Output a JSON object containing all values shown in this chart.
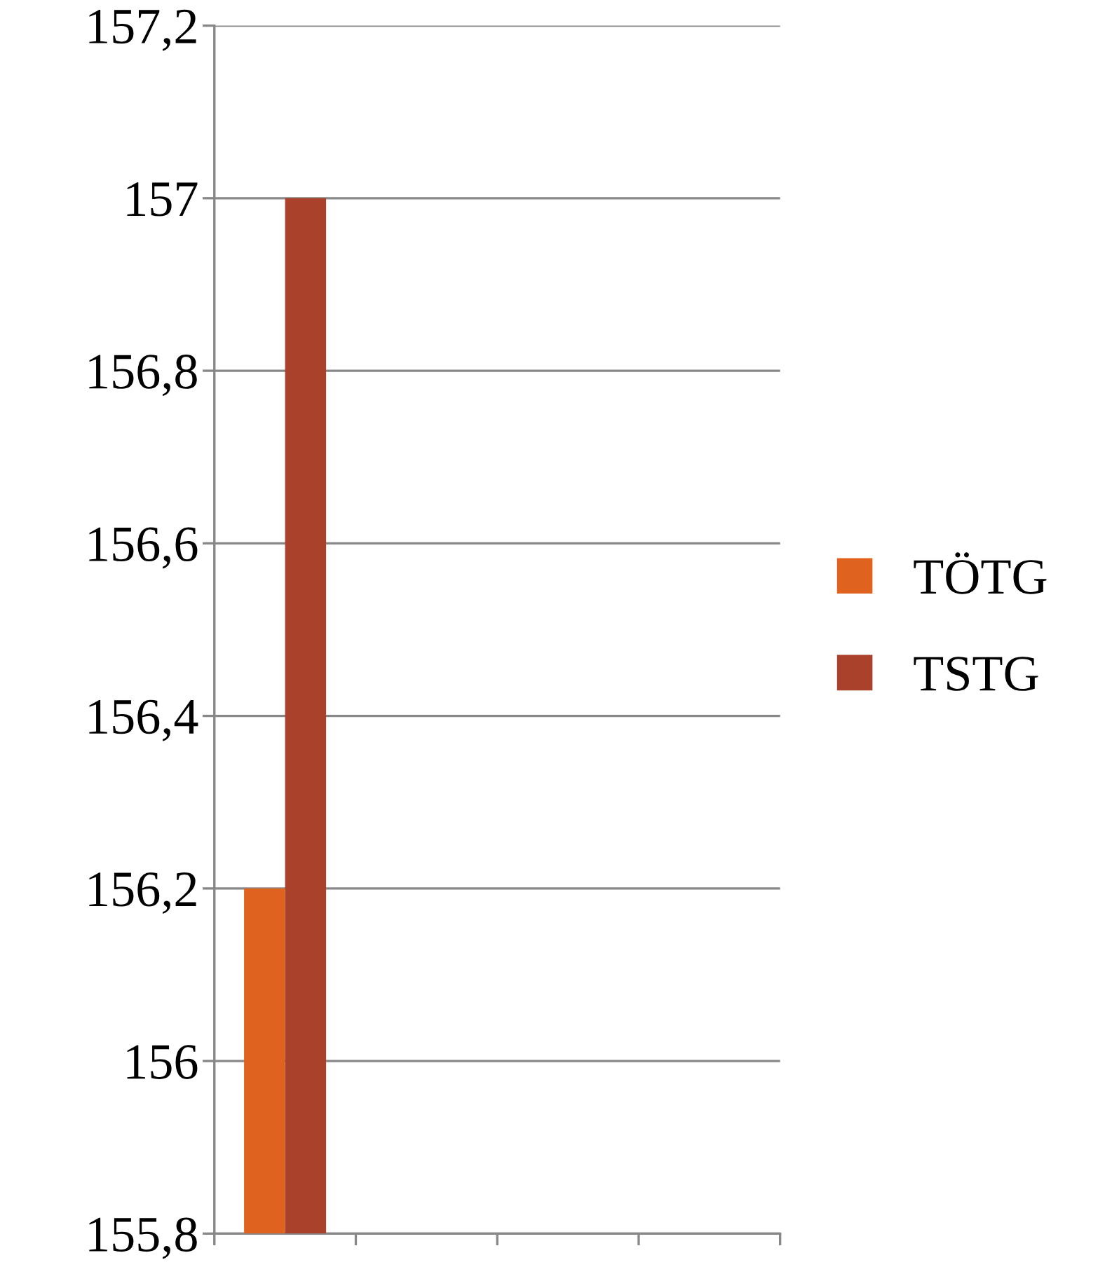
{
  "chart_data": {
    "type": "bar",
    "categories": [
      null,
      null,
      null,
      null
    ],
    "series": [
      {
        "name": "TÖTG",
        "color": "#e0621f",
        "values": [
          156.2,
          null,
          null,
          null
        ]
      },
      {
        "name": "TSTG",
        "color": "#a9412b",
        "values": [
          157,
          null,
          null,
          null
        ]
      }
    ],
    "ylim": [
      155.8,
      157.2
    ],
    "yticks": [
      {
        "value": 155.8,
        "label": "155,8"
      },
      {
        "value": 156,
        "label": "156"
      },
      {
        "value": 156.2,
        "label": "156,2"
      },
      {
        "value": 156.4,
        "label": "156,4"
      },
      {
        "value": 156.6,
        "label": "156,6"
      },
      {
        "value": 156.8,
        "label": "156,8"
      },
      {
        "value": 157,
        "label": "157"
      },
      {
        "value": 157.2,
        "label": "157,2"
      }
    ],
    "grid": "y",
    "legend": "right"
  }
}
